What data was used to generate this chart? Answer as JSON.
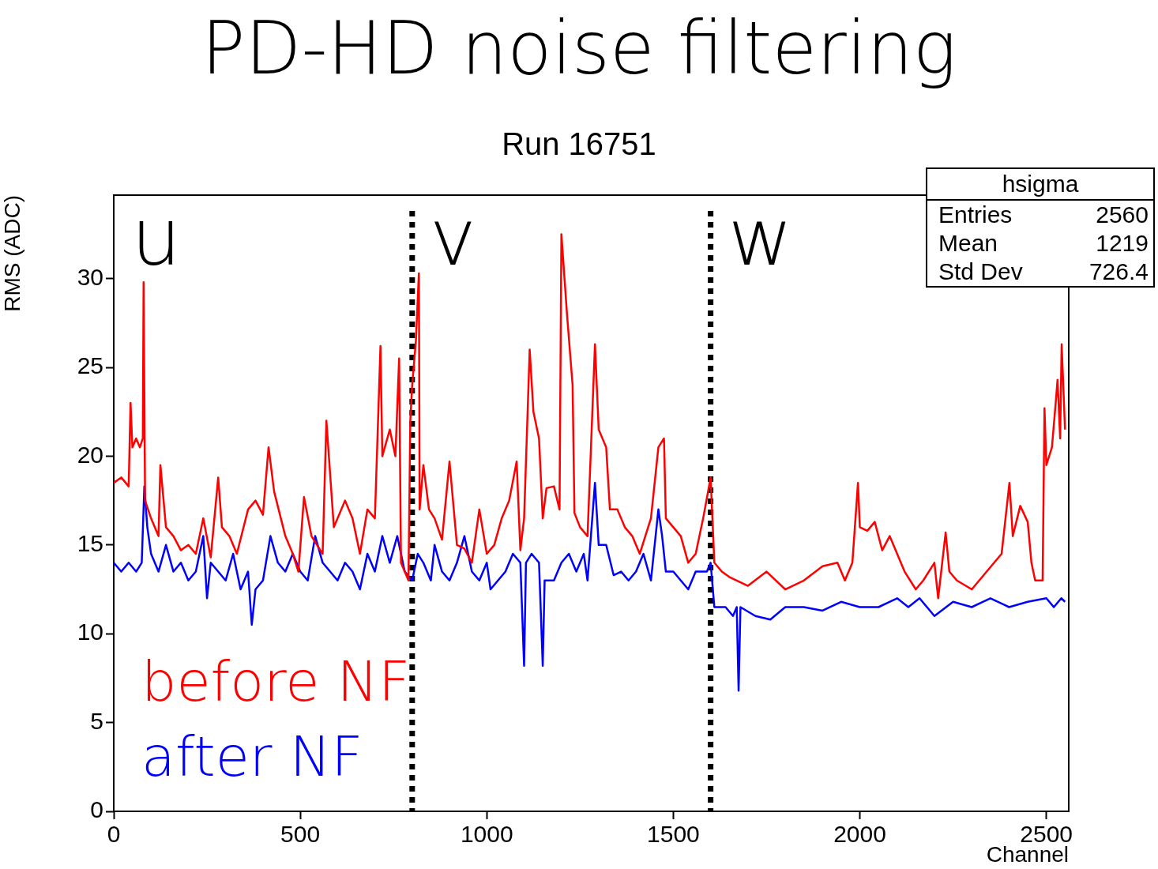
{
  "chart_data": {
    "type": "line",
    "title": "PD-HD noise filtering",
    "subtitle": "Run 16751",
    "xlabel": "Channel",
    "ylabel": "RMS (ADC)",
    "xlim": [
      0,
      2560
    ],
    "xticks": [
      0,
      500,
      1000,
      1500,
      2000,
      2500
    ],
    "ylim": [
      0,
      34.7
    ],
    "yticks": [
      0,
      5,
      10,
      15,
      20,
      25,
      30
    ],
    "grid": false,
    "legend": "bottom left",
    "marker": "none",
    "line_style": "solid",
    "ref_lines": [
      {
        "axis": "x",
        "value": 800,
        "color": "#000000",
        "line_style": "dotted"
      },
      {
        "axis": "x",
        "value": 1600,
        "color": "#000000",
        "line_style": "dotted"
      }
    ],
    "annotations": [
      "u",
      "v",
      "w",
      "hsigma",
      "Entries",
      "2560",
      "Mean",
      "1219",
      "Std Dev",
      "726.4"
    ],
    "series": [
      {
        "name": "before NF",
        "color": "#ff0000",
        "x": [
          0,
          20,
          40,
          45,
          50,
          60,
          70,
          78,
          80,
          84,
          100,
          120,
          125,
          140,
          160,
          180,
          200,
          220,
          240,
          260,
          280,
          290,
          310,
          330,
          360,
          380,
          400,
          415,
          430,
          460,
          480,
          495,
          510,
          530,
          560,
          570,
          590,
          620,
          640,
          660,
          680,
          700,
          715,
          720,
          740,
          755,
          765,
          770,
          790,
          795,
          800,
          810,
          818,
          820,
          830,
          845,
          860,
          880,
          900,
          920,
          940,
          960,
          980,
          1000,
          1020,
          1040,
          1060,
          1080,
          1090,
          1100,
          1115,
          1125,
          1140,
          1150,
          1160,
          1180,
          1195,
          1200,
          1215,
          1230,
          1235,
          1250,
          1270,
          1290,
          1300,
          1320,
          1330,
          1350,
          1370,
          1390,
          1410,
          1440,
          1460,
          1475,
          1480,
          1500,
          1520,
          1540,
          1560,
          1580,
          1600,
          1610,
          1630,
          1650,
          1700,
          1750,
          1800,
          1850,
          1900,
          1940,
          1960,
          1980,
          1995,
          2000,
          2020,
          2040,
          2060,
          2080,
          2100,
          2120,
          2150,
          2170,
          2200,
          2210,
          2230,
          2240,
          2260,
          2300,
          2340,
          2380,
          2401,
          2410,
          2430,
          2450,
          2460,
          2470,
          2490,
          2495,
          2500,
          2515,
          2525,
          2530,
          2537,
          2541,
          2550
        ],
        "values": [
          18.5,
          18.8,
          18.3,
          23,
          20.5,
          21,
          20.5,
          21,
          29.8,
          17.5,
          16.5,
          15.5,
          19.5,
          16,
          15.5,
          14.7,
          15,
          14.5,
          16.5,
          14.3,
          18.8,
          16,
          15.5,
          14.5,
          17,
          17.5,
          16.7,
          20.5,
          18,
          15.5,
          14.5,
          13.5,
          17.7,
          15.5,
          14.5,
          22,
          16,
          17.5,
          16.5,
          14.5,
          17,
          16.5,
          26.2,
          20,
          21.5,
          20,
          25.5,
          14,
          13,
          22,
          24,
          26.5,
          30.3,
          17,
          19.5,
          17,
          16.5,
          15.3,
          19.7,
          15,
          14.8,
          14,
          17,
          14.5,
          15,
          16.5,
          17.5,
          19.7,
          14.7,
          16.5,
          26,
          22.5,
          21,
          16.5,
          18.2,
          18.3,
          17,
          32.5,
          28,
          24,
          16.8,
          16,
          15.5,
          26.3,
          21.5,
          20.5,
          17,
          17,
          16,
          15.5,
          14.5,
          16.5,
          20.5,
          21,
          16.5,
          16,
          15.5,
          14,
          14.5,
          16.5,
          18.8,
          14,
          13.5,
          13.2,
          12.7,
          13.5,
          12.5,
          13,
          13.8,
          14,
          13,
          14,
          18.5,
          16,
          15.8,
          16.3,
          14.7,
          15.5,
          14.5,
          13.5,
          12.5,
          13,
          14,
          12,
          15.7,
          13.5,
          13,
          12.5,
          13.5,
          14.5,
          18.5,
          15.5,
          17.2,
          16.3,
          14,
          13,
          13,
          22.7,
          19.5,
          20.5,
          23,
          24.3,
          21,
          26.3,
          21.5
        ]
      },
      {
        "name": "after NF",
        "color": "#0000ff",
        "x": [
          0,
          20,
          40,
          60,
          75,
          82,
          90,
          100,
          120,
          140,
          160,
          180,
          200,
          220,
          240,
          250,
          260,
          280,
          300,
          320,
          340,
          360,
          370,
          380,
          400,
          420,
          440,
          460,
          480,
          500,
          520,
          540,
          560,
          580,
          600,
          620,
          640,
          660,
          680,
          700,
          720,
          740,
          760,
          780,
          800,
          815,
          830,
          850,
          860,
          880,
          900,
          920,
          940,
          960,
          980,
          1000,
          1010,
          1030,
          1050,
          1070,
          1090,
          1100,
          1105,
          1120,
          1140,
          1150,
          1155,
          1180,
          1200,
          1220,
          1240,
          1260,
          1270,
          1290,
          1300,
          1320,
          1340,
          1360,
          1380,
          1400,
          1420,
          1440,
          1460,
          1470,
          1480,
          1500,
          1520,
          1540,
          1560,
          1590,
          1600,
          1610,
          1640,
          1660,
          1670,
          1675,
          1680,
          1720,
          1760,
          1800,
          1850,
          1900,
          1950,
          2000,
          2050,
          2100,
          2130,
          2160,
          2200,
          2250,
          2300,
          2350,
          2400,
          2450,
          2500,
          2520,
          2540,
          2550
        ],
        "values": [
          14,
          13.5,
          14,
          13.5,
          14,
          18.3,
          16,
          14.5,
          13.5,
          15,
          13.5,
          14,
          13,
          13.5,
          15.5,
          12,
          14,
          13.5,
          13,
          14.5,
          12.5,
          13.5,
          10.5,
          12.5,
          13,
          15.5,
          14,
          13.5,
          14.5,
          13.5,
          13,
          15.5,
          14,
          13.5,
          13,
          14,
          13.5,
          12.5,
          14.5,
          13.5,
          15.5,
          14,
          15.5,
          13.5,
          13,
          14.5,
          14,
          13,
          15,
          13.5,
          13,
          14,
          15.5,
          13.5,
          13,
          14,
          12.5,
          13,
          13.5,
          14.5,
          14,
          8.2,
          14,
          14.5,
          14,
          8.2,
          13,
          13,
          14,
          14.5,
          13.5,
          14.5,
          13,
          18.5,
          15,
          15,
          13.3,
          13.5,
          13,
          13.5,
          14.5,
          13,
          17,
          15.5,
          13.5,
          13.5,
          13,
          12.5,
          13.5,
          13.5,
          14,
          11.5,
          11.5,
          11,
          11.5,
          6.8,
          11.5,
          11,
          10.8,
          11.5,
          11.5,
          11.3,
          11.8,
          11.5,
          11.5,
          12,
          11.5,
          12,
          11,
          11.8,
          11.5,
          12,
          11.5,
          11.8,
          12,
          11.5,
          12,
          11.8
        ]
      }
    ]
  }
}
